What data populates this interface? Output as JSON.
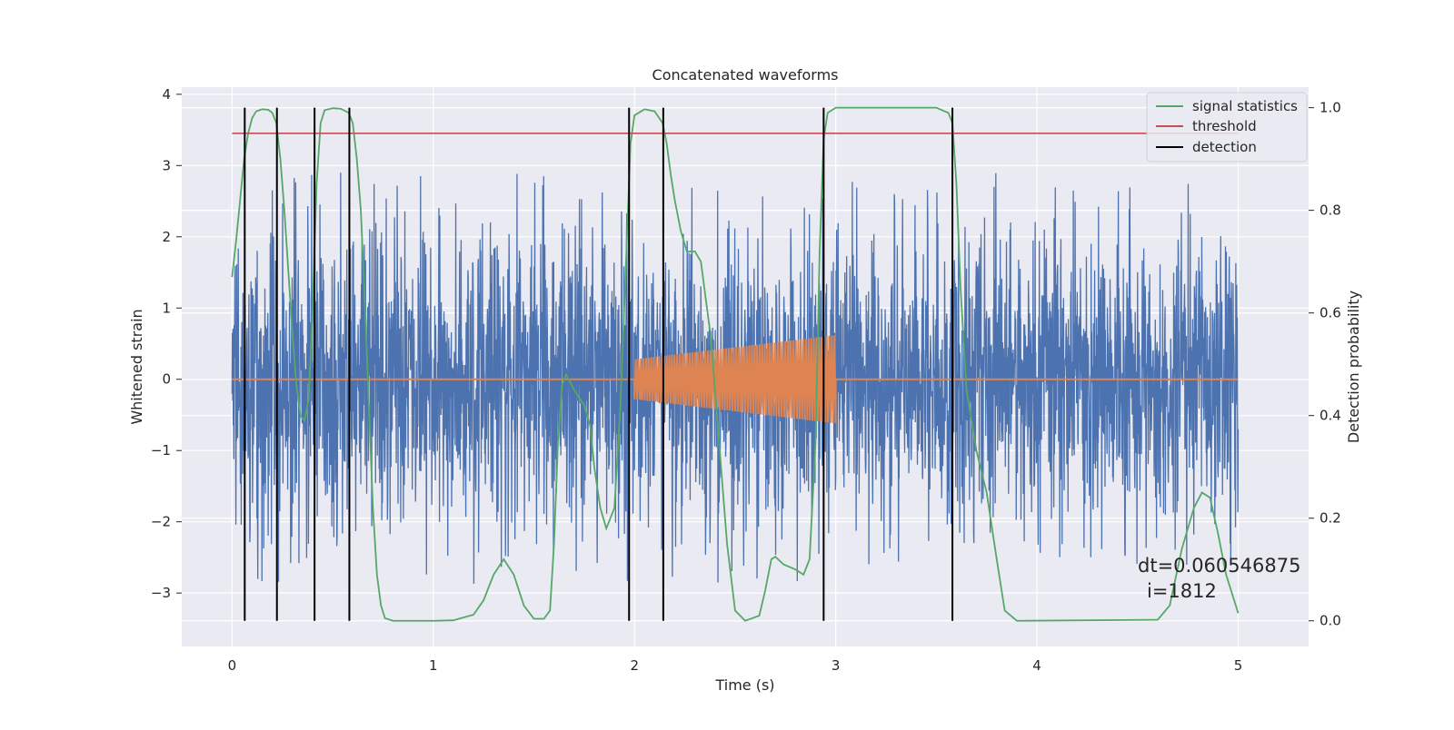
{
  "chart_data": {
    "type": "line",
    "title": "Concatenated waveforms",
    "xlabel": "Time (s)",
    "ylabel_left": "Whitened strain",
    "ylabel_right": "Detection probability",
    "xlim": [
      -0.25,
      5.35
    ],
    "ylim_left": [
      -3.75,
      4.1
    ],
    "ylim_right": [
      -0.05,
      1.04
    ],
    "x_ticks": [
      0,
      1,
      2,
      3,
      4,
      5
    ],
    "x_tick_labels": [
      "0",
      "1",
      "2",
      "3",
      "4",
      "5"
    ],
    "y_left_ticks": [
      -3,
      -2,
      -1,
      0,
      1,
      2,
      3,
      4
    ],
    "y_left_tick_labels": [
      "−3",
      "−2",
      "−1",
      "0",
      "1",
      "2",
      "3",
      "4"
    ],
    "y_right_ticks": [
      0.0,
      0.2,
      0.4,
      0.6,
      0.8,
      1.0
    ],
    "y_right_tick_labels": [
      "0.0",
      "0.2",
      "0.4",
      "0.6",
      "0.8",
      "1.0"
    ],
    "grid": true,
    "legend_position": "top-right",
    "colors": {
      "background": "#eaeaf2",
      "grid": "#ffffff",
      "strain": "#4c72b0",
      "injection": "#dd8452",
      "signal_statistics": "#55a868",
      "threshold": "#c44e52",
      "detection": "#000000"
    },
    "series": [
      {
        "name": "strain",
        "axis": "left",
        "x_range": [
          0,
          5
        ],
        "amplitude_core": 0.85,
        "spike_max": 3.75,
        "spike_min": -3.4
      },
      {
        "name": "injection",
        "axis": "left",
        "chirp_start": 2.0,
        "chirp_end": 3.0,
        "amp_start": 0.28,
        "amp_end": 0.62,
        "baseline": 0
      },
      {
        "name": "signal statistics",
        "axis": "right",
        "points": [
          [
            0.0,
            0.67
          ],
          [
            0.02,
            0.74
          ],
          [
            0.04,
            0.82
          ],
          [
            0.06,
            0.9
          ],
          [
            0.08,
            0.95
          ],
          [
            0.1,
            0.98
          ],
          [
            0.12,
            0.993
          ],
          [
            0.15,
            0.997
          ],
          [
            0.18,
            0.996
          ],
          [
            0.2,
            0.99
          ],
          [
            0.22,
            0.97
          ],
          [
            0.24,
            0.9
          ],
          [
            0.26,
            0.8
          ],
          [
            0.28,
            0.68
          ],
          [
            0.3,
            0.56
          ],
          [
            0.32,
            0.46
          ],
          [
            0.34,
            0.4
          ],
          [
            0.36,
            0.39
          ],
          [
            0.38,
            0.43
          ],
          [
            0.4,
            0.6
          ],
          [
            0.42,
            0.85
          ],
          [
            0.44,
            0.97
          ],
          [
            0.46,
            0.995
          ],
          [
            0.5,
            0.999
          ],
          [
            0.54,
            0.998
          ],
          [
            0.58,
            0.99
          ],
          [
            0.6,
            0.97
          ],
          [
            0.62,
            0.9
          ],
          [
            0.64,
            0.8
          ],
          [
            0.66,
            0.62
          ],
          [
            0.68,
            0.42
          ],
          [
            0.7,
            0.22
          ],
          [
            0.72,
            0.09
          ],
          [
            0.74,
            0.03
          ],
          [
            0.76,
            0.005
          ],
          [
            0.8,
            0.0
          ],
          [
            1.0,
            0.0
          ],
          [
            1.1,
            0.001
          ],
          [
            1.2,
            0.012
          ],
          [
            1.25,
            0.04
          ],
          [
            1.3,
            0.09
          ],
          [
            1.35,
            0.12
          ],
          [
            1.4,
            0.09
          ],
          [
            1.45,
            0.03
          ],
          [
            1.5,
            0.004
          ],
          [
            1.55,
            0.004
          ],
          [
            1.58,
            0.02
          ],
          [
            1.6,
            0.15
          ],
          [
            1.62,
            0.35
          ],
          [
            1.64,
            0.46
          ],
          [
            1.66,
            0.48
          ],
          [
            1.7,
            0.45
          ],
          [
            1.75,
            0.42
          ],
          [
            1.78,
            0.38
          ],
          [
            1.8,
            0.3
          ],
          [
            1.83,
            0.22
          ],
          [
            1.86,
            0.18
          ],
          [
            1.9,
            0.22
          ],
          [
            1.93,
            0.42
          ],
          [
            1.96,
            0.72
          ],
          [
            1.98,
            0.93
          ],
          [
            2.0,
            0.985
          ],
          [
            2.05,
            0.997
          ],
          [
            2.1,
            0.993
          ],
          [
            2.14,
            0.97
          ],
          [
            2.16,
            0.93
          ],
          [
            2.18,
            0.87
          ],
          [
            2.2,
            0.82
          ],
          [
            2.23,
            0.76
          ],
          [
            2.26,
            0.72
          ],
          [
            2.3,
            0.72
          ],
          [
            2.33,
            0.7
          ],
          [
            2.38,
            0.55
          ],
          [
            2.42,
            0.35
          ],
          [
            2.46,
            0.15
          ],
          [
            2.5,
            0.02
          ],
          [
            2.55,
            0.0
          ],
          [
            2.62,
            0.01
          ],
          [
            2.65,
            0.06
          ],
          [
            2.68,
            0.12
          ],
          [
            2.7,
            0.125
          ],
          [
            2.74,
            0.11
          ],
          [
            2.8,
            0.1
          ],
          [
            2.84,
            0.09
          ],
          [
            2.87,
            0.12
          ],
          [
            2.9,
            0.35
          ],
          [
            2.92,
            0.72
          ],
          [
            2.94,
            0.94
          ],
          [
            2.96,
            0.99
          ],
          [
            3.0,
            1.0
          ],
          [
            3.5,
            1.0
          ],
          [
            3.56,
            0.99
          ],
          [
            3.58,
            0.97
          ],
          [
            3.6,
            0.85
          ],
          [
            3.62,
            0.65
          ],
          [
            3.65,
            0.45
          ],
          [
            3.7,
            0.33
          ],
          [
            3.75,
            0.25
          ],
          [
            3.8,
            0.12
          ],
          [
            3.84,
            0.02
          ],
          [
            3.9,
            0.0
          ],
          [
            4.6,
            0.002
          ],
          [
            4.66,
            0.03
          ],
          [
            4.72,
            0.14
          ],
          [
            4.78,
            0.22
          ],
          [
            4.82,
            0.25
          ],
          [
            4.86,
            0.24
          ],
          [
            4.9,
            0.17
          ],
          [
            4.94,
            0.09
          ],
          [
            5.0,
            0.015
          ]
        ]
      },
      {
        "name": "threshold",
        "axis": "right",
        "value": 0.95,
        "x_range": [
          0,
          5
        ]
      },
      {
        "name": "detection",
        "axis": "right",
        "x_positions": [
          0.063,
          0.223,
          0.41,
          0.583,
          1.973,
          2.143,
          2.94,
          3.58
        ],
        "y_range": [
          0.0,
          1.0
        ]
      }
    ],
    "legend": [
      "signal statistics",
      "threshold",
      "detection"
    ],
    "annotations": [
      "dt=0.060546875",
      "i=1812"
    ]
  }
}
